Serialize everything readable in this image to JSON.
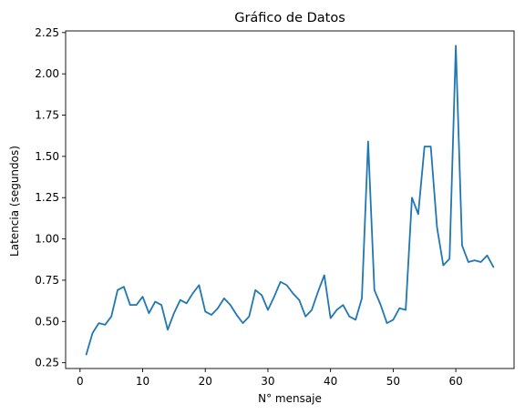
{
  "chart_data": {
    "type": "line",
    "title": "Gráfico de Datos",
    "xlabel": "N° mensaje",
    "ylabel": "Latencia (segundos)",
    "xlim": [
      -2.3,
      69.3
    ],
    "ylim": [
      0.215,
      2.26
    ],
    "xticks": [
      0,
      10,
      20,
      30,
      40,
      50,
      60
    ],
    "xtick_labels": [
      "0",
      "10",
      "20",
      "30",
      "40",
      "50",
      "60"
    ],
    "yticks": [
      0.25,
      0.5,
      0.75,
      1.0,
      1.25,
      1.5,
      1.75,
      2.0,
      2.25
    ],
    "ytick_labels": [
      "0.25",
      "0.50",
      "0.75",
      "1.00",
      "1.25",
      "1.50",
      "1.75",
      "2.00",
      "2.25"
    ],
    "grid": false,
    "line_color": "#1f77b4",
    "series": [
      {
        "name": "Latencia",
        "x": [
          1,
          2,
          3,
          4,
          5,
          6,
          7,
          8,
          9,
          10,
          11,
          12,
          13,
          14,
          15,
          16,
          17,
          18,
          19,
          20,
          21,
          22,
          23,
          24,
          25,
          26,
          27,
          28,
          29,
          30,
          31,
          32,
          33,
          34,
          35,
          36,
          37,
          38,
          39,
          40,
          41,
          42,
          43,
          44,
          45,
          46,
          47,
          48,
          49,
          50,
          51,
          52,
          53,
          54,
          55,
          56,
          57,
          58,
          59,
          60,
          61,
          62,
          63,
          64,
          65,
          66
        ],
        "values": [
          0.3,
          0.43,
          0.49,
          0.48,
          0.53,
          0.69,
          0.71,
          0.6,
          0.6,
          0.65,
          0.55,
          0.62,
          0.6,
          0.45,
          0.55,
          0.63,
          0.61,
          0.67,
          0.72,
          0.56,
          0.54,
          0.58,
          0.64,
          0.6,
          0.54,
          0.49,
          0.53,
          0.69,
          0.66,
          0.57,
          0.65,
          0.74,
          0.72,
          0.67,
          0.63,
          0.53,
          0.57,
          0.68,
          0.78,
          0.52,
          0.57,
          0.6,
          0.53,
          0.51,
          0.64,
          1.59,
          0.69,
          0.6,
          0.49,
          0.51,
          0.58,
          0.57,
          1.25,
          1.15,
          1.56,
          1.56,
          1.07,
          0.84,
          0.88,
          2.17,
          0.96,
          0.86,
          0.87,
          0.86,
          0.9,
          0.83
        ]
      }
    ]
  }
}
